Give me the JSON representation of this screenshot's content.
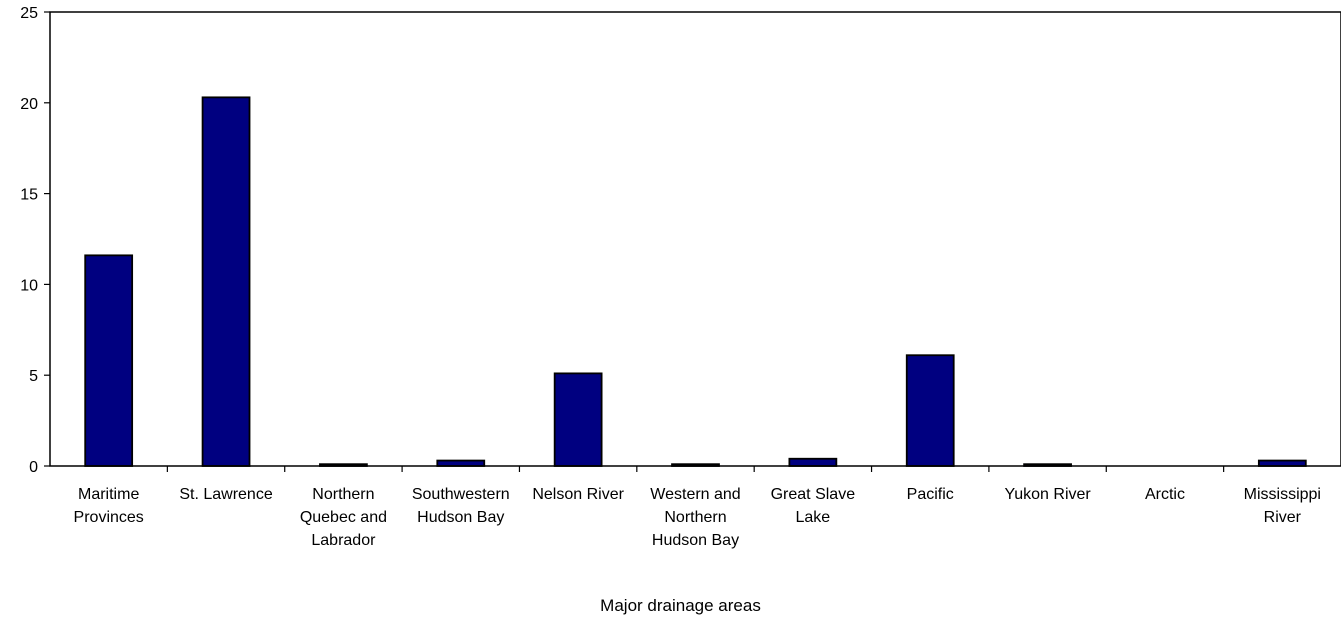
{
  "chart_data": {
    "type": "bar",
    "title": "",
    "xlabel": "Major drainage areas",
    "ylabel": "",
    "ylim": [
      0,
      25
    ],
    "yticks": [
      0,
      5,
      10,
      15,
      20,
      25
    ],
    "grid": false,
    "legend": "none",
    "categories": [
      [
        "Maritime",
        "Provinces"
      ],
      [
        "St. Lawrence"
      ],
      [
        "Northern",
        "Quebec and",
        "Labrador"
      ],
      [
        "Southwestern",
        "Hudson Bay"
      ],
      [
        "Nelson River"
      ],
      [
        "Western and",
        "Northern",
        "Hudson Bay"
      ],
      [
        "Great Slave",
        "Lake"
      ],
      [
        "Pacific"
      ],
      [
        "Yukon River"
      ],
      [
        "Arctic"
      ],
      [
        "Mississippi",
        "River"
      ]
    ],
    "values": [
      11.6,
      20.3,
      0.1,
      0.3,
      5.1,
      0.1,
      0.4,
      6.1,
      0.1,
      0.0,
      0.3
    ],
    "colors": {
      "bar_fill": "#000080",
      "bar_stroke": "#000000",
      "axis": "#000000"
    }
  }
}
